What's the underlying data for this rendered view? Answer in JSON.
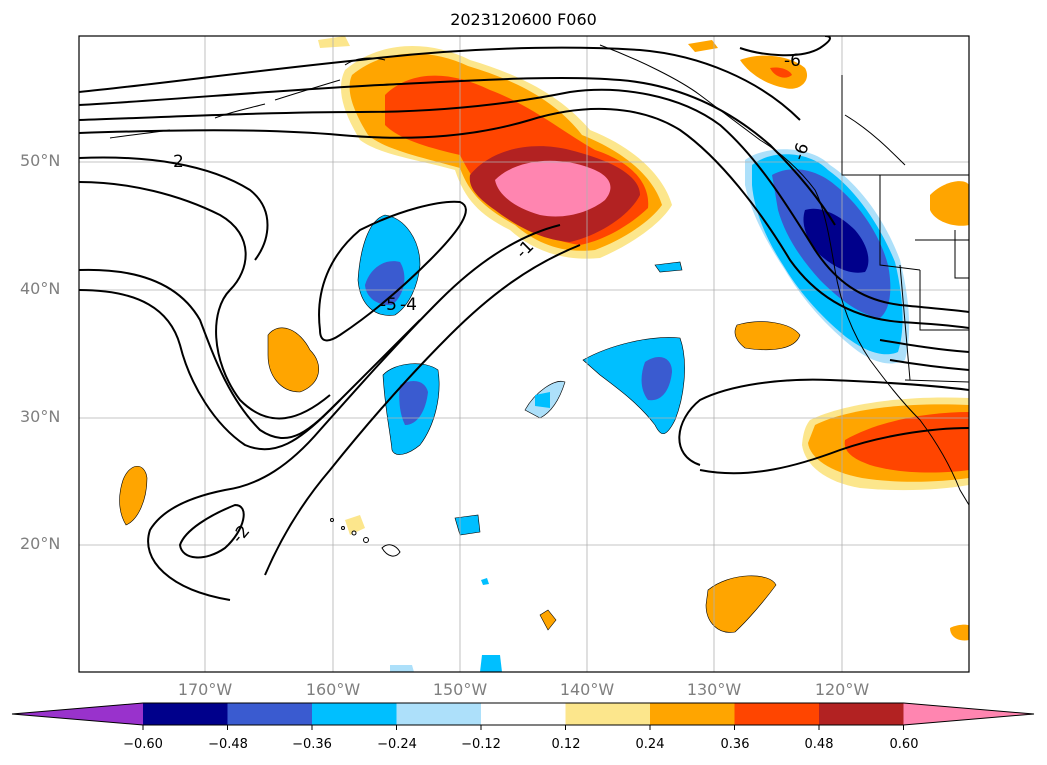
{
  "title": "2023120600 F060",
  "lat_labels": [
    "50°N",
    "40°N",
    "30°N",
    "20°N"
  ],
  "lon_labels": [
    "170°W",
    "160°W",
    "150°W",
    "140°W",
    "130°W",
    "120°W"
  ],
  "colorbar": {
    "ticks": [
      "−0.60",
      "−0.48",
      "−0.36",
      "−0.24",
      "−0.12",
      "0.12",
      "0.24",
      "0.36",
      "0.48",
      "0.60"
    ],
    "colors": [
      "#9932CC",
      "#00008B",
      "#3A5BD0",
      "#00BFFF",
      "#ADE0FA",
      "#FFFFFF",
      "#FCE68C",
      "#FFA500",
      "#FF4500",
      "#B22222",
      "#FF85B0"
    ]
  },
  "contour_labels": [
    "2",
    "-1",
    "-6",
    "-5",
    "-4",
    "-2",
    "-6"
  ],
  "grid": true
}
